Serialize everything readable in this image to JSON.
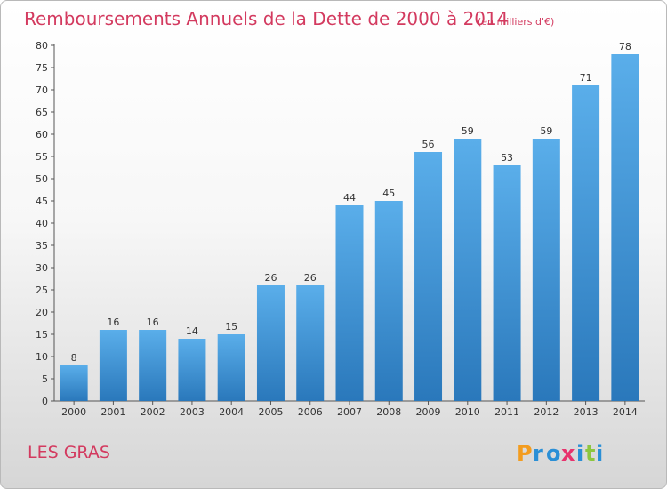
{
  "chart_data": {
    "type": "bar",
    "title": "Remboursements Annuels de la Dette de 2000 à 2014",
    "subtitle": "(en milliers d'€)",
    "categories": [
      "2000",
      "2001",
      "2002",
      "2003",
      "2004",
      "2005",
      "2006",
      "2007",
      "2008",
      "2009",
      "2010",
      "2011",
      "2012",
      "2013",
      "2014"
    ],
    "values": [
      8,
      16,
      16,
      14,
      15,
      26,
      26,
      44,
      45,
      56,
      59,
      53,
      59,
      71,
      78
    ],
    "xlabel": "",
    "ylabel": "",
    "ylim": [
      0,
      80
    ],
    "yticks": [
      0,
      5,
      10,
      15,
      20,
      25,
      30,
      35,
      40,
      45,
      50,
      55,
      60,
      65,
      70,
      75,
      80
    ],
    "grid": false,
    "bar_color": "#3f97d6"
  },
  "place_name": "LES GRAS",
  "brand": {
    "letters": [
      "P",
      "r",
      "o",
      "x",
      "i",
      "t",
      "i"
    ],
    "colors": [
      "#f39c1f",
      "#2a8fd6",
      "#2a8fd6",
      "#e8336d",
      "#2a8fd6",
      "#8cc63f",
      "#2a8fd6"
    ]
  }
}
